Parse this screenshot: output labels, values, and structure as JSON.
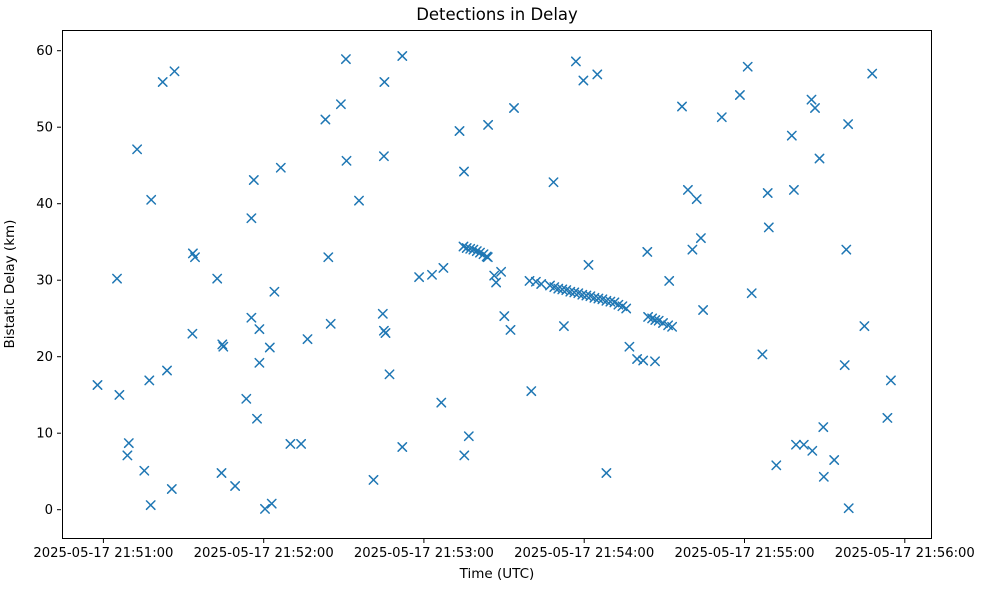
{
  "chart_data": {
    "type": "scatter",
    "title": "Detections in Delay",
    "xlabel": "Time (UTC)",
    "ylabel": "Bistatic Delay (km)",
    "marker": "x",
    "marker_color": "#1f77b4",
    "grid": false,
    "legend": "none",
    "x_range_seconds": [
      -15.5,
      310.2
    ],
    "y_range": [
      -3.7,
      62.7
    ],
    "x_axis": {
      "tick_seconds": [
        0,
        60,
        120,
        180,
        240,
        300
      ],
      "tick_labels": [
        "2025-05-17 21:51:00",
        "2025-05-17 21:52:00",
        "2025-05-17 21:53:00",
        "2025-05-17 21:54:00",
        "2025-05-17 21:55:00",
        "2025-05-17 21:56:00"
      ]
    },
    "y_axis": {
      "ticks": [
        0,
        10,
        20,
        30,
        40,
        50,
        60
      ]
    },
    "points_format": "[seconds_after_21:51:00, bistatic_delay_km]",
    "points": [
      [
        26.6,
        57.3
      ],
      [
        22.2,
        55.9
      ],
      [
        12.6,
        47.1
      ],
      [
        66.4,
        44.7
      ],
      [
        56.3,
        43.1
      ],
      [
        17.9,
        40.5
      ],
      [
        55.4,
        38.1
      ],
      [
        33.5,
        33.5
      ],
      [
        34.3,
        33.0
      ],
      [
        5.1,
        30.2
      ],
      [
        42.6,
        30.2
      ],
      [
        90.8,
        58.9
      ],
      [
        111.9,
        59.3
      ],
      [
        105.2,
        55.9
      ],
      [
        88.9,
        53.0
      ],
      [
        83.1,
        51.0
      ],
      [
        153.7,
        52.5
      ],
      [
        133.3,
        49.5
      ],
      [
        144.0,
        50.3
      ],
      [
        91.0,
        45.6
      ],
      [
        105.0,
        46.2
      ],
      [
        135.0,
        44.2
      ],
      [
        95.7,
        40.4
      ],
      [
        84.2,
        33.0
      ],
      [
        143.9,
        33.0
      ],
      [
        127.3,
        31.6
      ],
      [
        118.2,
        30.4
      ],
      [
        123.0,
        30.7
      ],
      [
        146.3,
        30.6
      ],
      [
        148.9,
        31.1
      ],
      [
        147.0,
        29.7
      ],
      [
        176.9,
        58.6
      ],
      [
        184.9,
        56.9
      ],
      [
        179.7,
        56.1
      ],
      [
        241.2,
        57.9
      ],
      [
        238.3,
        54.2
      ],
      [
        216.6,
        52.7
      ],
      [
        231.5,
        51.3
      ],
      [
        168.5,
        42.8
      ],
      [
        218.8,
        41.8
      ],
      [
        222.1,
        40.6
      ],
      [
        223.7,
        35.5
      ],
      [
        220.5,
        34.0
      ],
      [
        203.6,
        33.7
      ],
      [
        181.6,
        32.0
      ],
      [
        287.8,
        57.0
      ],
      [
        265.1,
        53.6
      ],
      [
        266.4,
        52.5
      ],
      [
        278.8,
        50.4
      ],
      [
        257.7,
        48.9
      ],
      [
        268.1,
        45.9
      ],
      [
        248.7,
        41.4
      ],
      [
        258.5,
        41.8
      ],
      [
        249.1,
        36.9
      ],
      [
        278.1,
        34.0
      ],
      [
        64.0,
        28.5
      ],
      [
        55.4,
        25.1
      ],
      [
        58.4,
        23.6
      ],
      [
        33.3,
        23.0
      ],
      [
        44.5,
        21.6
      ],
      [
        44.9,
        21.3
      ],
      [
        62.3,
        21.2
      ],
      [
        58.4,
        19.2
      ],
      [
        23.8,
        18.2
      ],
      [
        17.2,
        16.9
      ],
      [
        -2.2,
        16.3
      ],
      [
        6.0,
        15.0
      ],
      [
        53.5,
        14.5
      ],
      [
        57.5,
        11.9
      ],
      [
        9.5,
        8.7
      ],
      [
        9.0,
        7.1
      ],
      [
        15.3,
        5.1
      ],
      [
        25.6,
        2.7
      ],
      [
        44.2,
        4.8
      ],
      [
        49.3,
        3.1
      ],
      [
        17.7,
        0.6
      ],
      [
        63.0,
        0.8
      ],
      [
        60.5,
        0.1
      ],
      [
        104.6,
        25.6
      ],
      [
        85.1,
        24.3
      ],
      [
        105.0,
        23.4
      ],
      [
        105.6,
        23.1
      ],
      [
        76.4,
        22.3
      ],
      [
        150.1,
        25.3
      ],
      [
        152.4,
        23.5
      ],
      [
        107.1,
        17.7
      ],
      [
        126.5,
        14.0
      ],
      [
        136.8,
        9.6
      ],
      [
        135.1,
        7.1
      ],
      [
        70.0,
        8.6
      ],
      [
        74.0,
        8.6
      ],
      [
        111.9,
        8.2
      ],
      [
        101.1,
        3.9
      ],
      [
        224.5,
        26.1
      ],
      [
        172.4,
        24.0
      ],
      [
        160.2,
        15.5
      ],
      [
        196.9,
        21.3
      ],
      [
        199.8,
        19.7
      ],
      [
        202.1,
        19.5
      ],
      [
        206.5,
        19.4
      ],
      [
        188.3,
        4.8
      ],
      [
        211.8,
        29.9
      ],
      [
        242.7,
        28.3
      ],
      [
        284.9,
        24.0
      ],
      [
        246.7,
        20.3
      ],
      [
        277.5,
        18.9
      ],
      [
        294.8,
        16.9
      ],
      [
        293.5,
        12.0
      ],
      [
        269.5,
        10.8
      ],
      [
        259.3,
        8.5
      ],
      [
        262.2,
        8.5
      ],
      [
        265.4,
        7.7
      ],
      [
        251.9,
        5.8
      ],
      [
        273.6,
        6.5
      ],
      [
        269.7,
        4.3
      ],
      [
        279.0,
        0.2
      ],
      [
        134.8,
        34.4
      ],
      [
        136.0,
        34.2
      ],
      [
        137.3,
        34.1
      ],
      [
        138.5,
        34.0
      ],
      [
        139.8,
        33.8
      ],
      [
        141.0,
        33.6
      ],
      [
        142.3,
        33.4
      ],
      [
        143.5,
        33.1
      ],
      [
        159.5,
        29.9
      ],
      [
        161.9,
        29.8
      ],
      [
        163.9,
        29.5
      ],
      [
        167.2,
        29.3
      ],
      [
        168.8,
        29.1
      ],
      [
        170.3,
        28.9
      ],
      [
        171.8,
        28.8
      ],
      [
        173.3,
        28.7
      ],
      [
        174.8,
        28.5
      ],
      [
        176.3,
        28.4
      ],
      [
        177.8,
        28.3
      ],
      [
        179.3,
        28.1
      ],
      [
        180.8,
        28.0
      ],
      [
        182.3,
        27.9
      ],
      [
        183.8,
        27.7
      ],
      [
        185.3,
        27.6
      ],
      [
        186.8,
        27.5
      ],
      [
        188.3,
        27.3
      ],
      [
        189.8,
        27.2
      ],
      [
        191.3,
        27.1
      ],
      [
        192.8,
        26.8
      ],
      [
        194.3,
        26.6
      ],
      [
        195.7,
        26.3
      ],
      [
        203.9,
        25.2
      ],
      [
        205.4,
        25.0
      ],
      [
        206.6,
        24.8
      ],
      [
        207.9,
        24.7
      ],
      [
        209.5,
        24.4
      ],
      [
        211.4,
        24.1
      ],
      [
        212.9,
        23.9
      ]
    ]
  }
}
